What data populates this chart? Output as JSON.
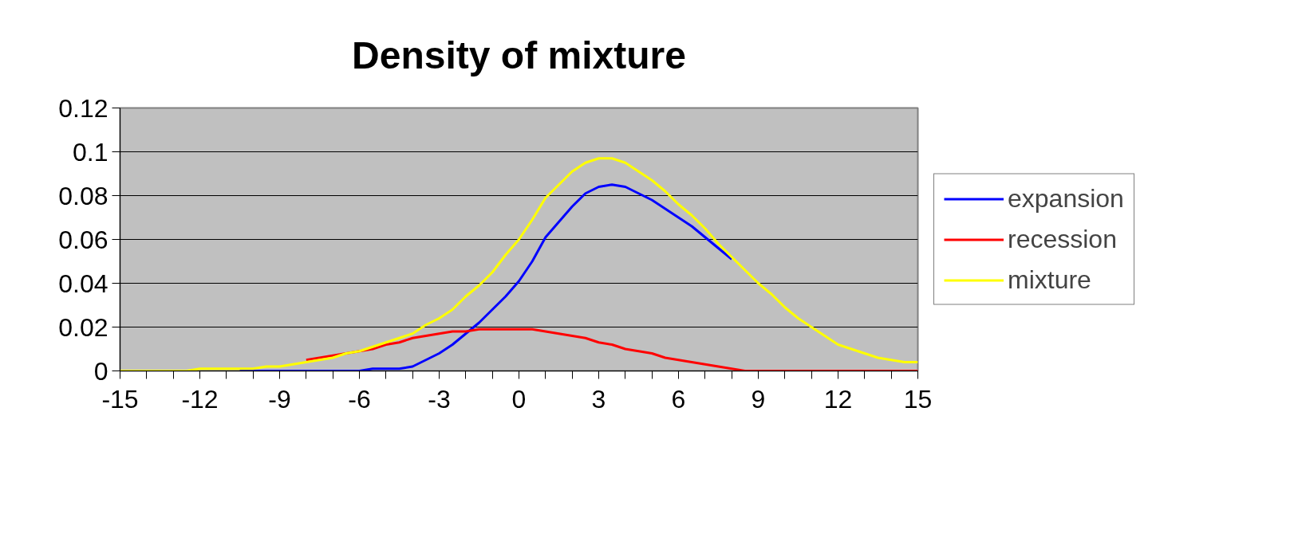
{
  "chart_data": {
    "type": "line",
    "title": "Density of mixture",
    "x": [
      -15,
      -14.5,
      -14,
      -13.5,
      -13,
      -12.5,
      -12,
      -11.5,
      -11,
      -10.5,
      -10,
      -9.5,
      -9,
      -8.5,
      -8,
      -7.5,
      -7,
      -6.5,
      -6,
      -5.5,
      -5,
      -4.5,
      -4,
      -3.5,
      -3,
      -2.5,
      -2,
      -1.5,
      -1,
      -0.5,
      0,
      0.5,
      1,
      1.5,
      2,
      2.5,
      3,
      3.5,
      4,
      4.5,
      5,
      5.5,
      6,
      6.5,
      7,
      7.5,
      8,
      8.5,
      9,
      9.5,
      10,
      10.5,
      11,
      11.5,
      12,
      12.5,
      13,
      13.5,
      14,
      14.5,
      15
    ],
    "series": [
      {
        "name": "expansion",
        "color": "#0000ff",
        "values": [
          null,
          null,
          null,
          null,
          null,
          null,
          null,
          null,
          null,
          0,
          0,
          0,
          0,
          0,
          0,
          0,
          0,
          0,
          0,
          0.001,
          0.001,
          0.001,
          0.002,
          0.005,
          0.008,
          0.012,
          0.017,
          0.022,
          0.028,
          0.034,
          0.041,
          0.05,
          0.061,
          0.068,
          0.075,
          0.081,
          0.084,
          0.085,
          0.084,
          0.081,
          0.078,
          0.074,
          0.07,
          0.066,
          0.061,
          0.056,
          0.051,
          null,
          null,
          null,
          null,
          null,
          null,
          null,
          null,
          null,
          null,
          null,
          null,
          null,
          null
        ]
      },
      {
        "name": "recession",
        "color": "#ff0000",
        "values": [
          null,
          null,
          null,
          null,
          null,
          null,
          null,
          null,
          null,
          null,
          null,
          null,
          null,
          null,
          0.005,
          0.006,
          0.007,
          0.008,
          0.009,
          0.01,
          0.012,
          0.013,
          0.015,
          0.016,
          0.017,
          0.018,
          0.018,
          0.019,
          0.019,
          0.019,
          0.019,
          0.019,
          0.018,
          0.017,
          0.016,
          0.015,
          0.013,
          0.012,
          0.01,
          0.009,
          0.008,
          0.006,
          0.005,
          0.004,
          0.003,
          0.002,
          0.001,
          0,
          0,
          0,
          0,
          0,
          0,
          0,
          0,
          0,
          0,
          0,
          0,
          0,
          0
        ]
      },
      {
        "name": "mixture",
        "color": "#ffff00",
        "values": [
          0,
          0,
          0,
          0,
          0,
          0,
          0.001,
          0.001,
          0.001,
          0.001,
          0.001,
          0.002,
          0.002,
          0.003,
          0.004,
          0.005,
          0.006,
          0.008,
          0.009,
          0.011,
          0.013,
          0.015,
          0.017,
          0.021,
          0.024,
          0.028,
          0.034,
          0.039,
          0.045,
          0.053,
          0.06,
          0.069,
          0.079,
          0.085,
          0.091,
          0.095,
          0.097,
          0.097,
          0.095,
          0.091,
          0.087,
          0.082,
          0.076,
          0.071,
          0.065,
          0.058,
          0.052,
          0.046,
          0.04,
          0.035,
          0.029,
          0.024,
          0.02,
          0.016,
          0.012,
          0.01,
          0.008,
          0.006,
          0.005,
          0.004,
          0.004
        ]
      }
    ],
    "xlim": [
      -15,
      15
    ],
    "xticks": [
      -15,
      {
        "value": -14,
        "label": null
      },
      {
        "value": -13,
        "label": null
      },
      -12,
      {
        "value": -11,
        "label": null
      },
      {
        "value": -10,
        "label": null
      },
      -9,
      {
        "value": -8,
        "label": null
      },
      {
        "value": -7,
        "label": null
      },
      -6,
      {
        "value": -5,
        "label": null
      },
      {
        "value": -4,
        "label": null
      },
      -3,
      {
        "value": -2,
        "label": null
      },
      {
        "value": -1,
        "label": null
      },
      0,
      {
        "value": 1,
        "label": null
      },
      {
        "value": 2,
        "label": null
      },
      3,
      {
        "value": 4,
        "label": null
      },
      {
        "value": 5,
        "label": null
      },
      6,
      {
        "value": 7,
        "label": null
      },
      {
        "value": 8,
        "label": null
      },
      9,
      {
        "value": 10,
        "label": null
      },
      {
        "value": 11,
        "label": null
      },
      12,
      {
        "value": 13,
        "label": null
      },
      {
        "value": 14,
        "label": null
      },
      15
    ],
    "ylim": [
      0,
      0.12
    ],
    "yticks": [
      0,
      0.02,
      0.04,
      0.06,
      0.08,
      0.1,
      0.12
    ],
    "grid": "y",
    "legend": "right",
    "marker": "none",
    "line_style": "solid"
  }
}
